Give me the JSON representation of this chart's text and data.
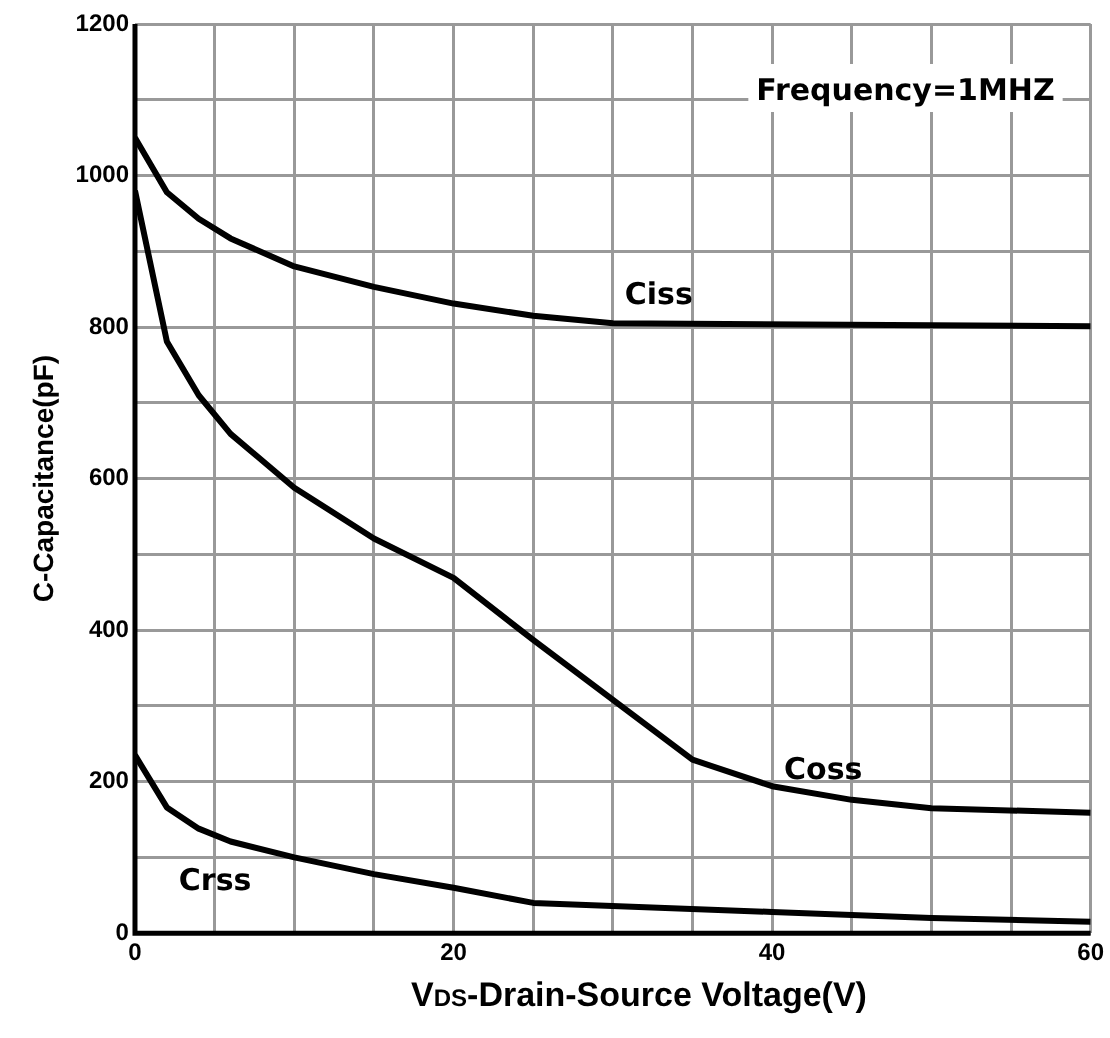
{
  "chart_data": {
    "type": "line",
    "xlabel": "V$_{DS}$-Drain-Source Voltage(V)",
    "ylabel": "C-Capacitance(pF)",
    "annotations": [
      "Frequency=1MHZ"
    ],
    "xlim": [
      0,
      60
    ],
    "xticks": [
      0,
      {
        "value": 5,
        "label": null
      },
      {
        "value": 10,
        "label": null
      },
      {
        "value": 15,
        "label": null
      },
      20,
      {
        "value": 25,
        "label": null
      },
      {
        "value": 30,
        "label": null
      },
      {
        "value": 35,
        "label": null
      },
      40,
      {
        "value": 45,
        "label": null
      },
      {
        "value": 50,
        "label": null
      },
      {
        "value": 55,
        "label": null
      },
      60
    ],
    "ylim": [
      0,
      1200
    ],
    "yticks": [
      0,
      {
        "value": 100,
        "label": null
      },
      200,
      {
        "value": 300,
        "label": null
      },
      400,
      {
        "value": 500,
        "label": null
      },
      600,
      {
        "value": 700,
        "label": null
      },
      800,
      {
        "value": 900,
        "label": null
      },
      1000,
      {
        "value": 1100,
        "label": null
      },
      1200
    ],
    "grid": true,
    "marker": "none",
    "line_style": "solid",
    "series": [
      {
        "name": "Ciss",
        "color": "#000000",
        "x": [
          0,
          2,
          4,
          6,
          10,
          15,
          20,
          25,
          30,
          60
        ],
        "values": [
          1050,
          978,
          943,
          917,
          880,
          853,
          831,
          815,
          805,
          801
        ]
      },
      {
        "name": "Coss",
        "color": "#000000",
        "x": [
          0,
          2,
          4,
          6,
          10,
          15,
          20,
          25,
          35,
          40,
          45,
          50,
          60
        ],
        "values": [
          980,
          781,
          710,
          659,
          588,
          521,
          469,
          387,
          229,
          194,
          176,
          165,
          159
        ]
      },
      {
        "name": "Crss",
        "color": "#000000",
        "x": [
          0,
          2,
          4,
          6,
          10,
          15,
          20,
          25,
          40,
          50,
          60
        ],
        "values": [
          235,
          166,
          138,
          121,
          100,
          78,
          60,
          40,
          28,
          20,
          15
        ]
      }
    ]
  }
}
